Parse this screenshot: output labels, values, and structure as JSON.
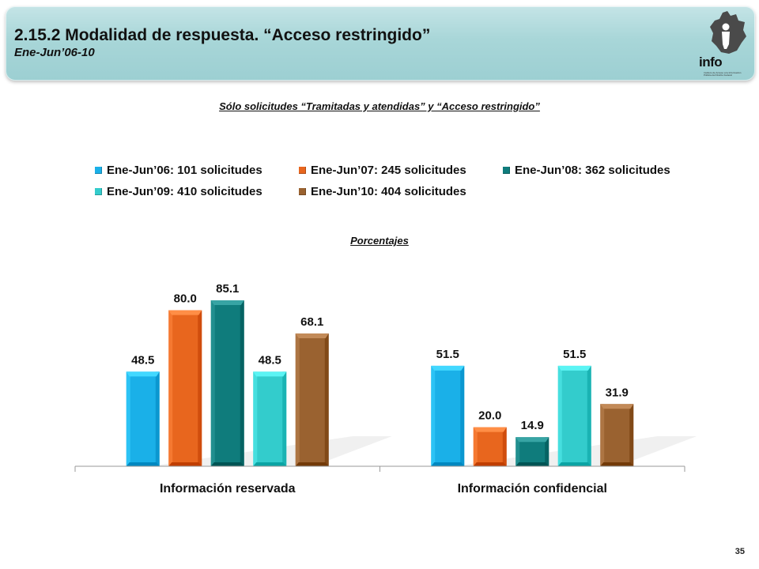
{
  "header": {
    "title": "2.15.2 Modalidad de respuesta. “Acceso restringido”",
    "subtitle": "Ene-Jun’06-10",
    "logo_text": "info",
    "logo_caption": "Instituto de Acceso a la Información Pública del Distrito Federal"
  },
  "section_heading": "Sólo solicitudes “Tramitadas y atendidas” y “Acceso restringido”",
  "percent_heading": "Porcentajes",
  "page_number": "35",
  "colors": {
    "header_bg": "#a8d6d8",
    "series": [
      "#1ab0e8",
      "#e8661e",
      "#0f7c7c",
      "#33cccc",
      "#9a6230"
    ]
  },
  "chart_data": {
    "type": "bar",
    "categories": [
      "Información reservada",
      "Información confidencial"
    ],
    "series": [
      {
        "name": "Ene-Jun’06: 101 solicitudes",
        "values": [
          48.5,
          51.5
        ]
      },
      {
        "name": "Ene-Jun’07: 245 solicitudes",
        "values": [
          80.0,
          20.0
        ]
      },
      {
        "name": "Ene-Jun’08: 362 solicitudes",
        "values": [
          85.1,
          14.9
        ]
      },
      {
        "name": "Ene-Jun’09: 410 solicitudes",
        "values": [
          48.5,
          51.5
        ]
      },
      {
        "name": "Ene-Jun’10: 404 solicitudes",
        "values": [
          68.1,
          31.9
        ]
      }
    ],
    "value_format": "0.0",
    "ylim": [
      0,
      100
    ],
    "grid": false,
    "legend_position": "top"
  }
}
